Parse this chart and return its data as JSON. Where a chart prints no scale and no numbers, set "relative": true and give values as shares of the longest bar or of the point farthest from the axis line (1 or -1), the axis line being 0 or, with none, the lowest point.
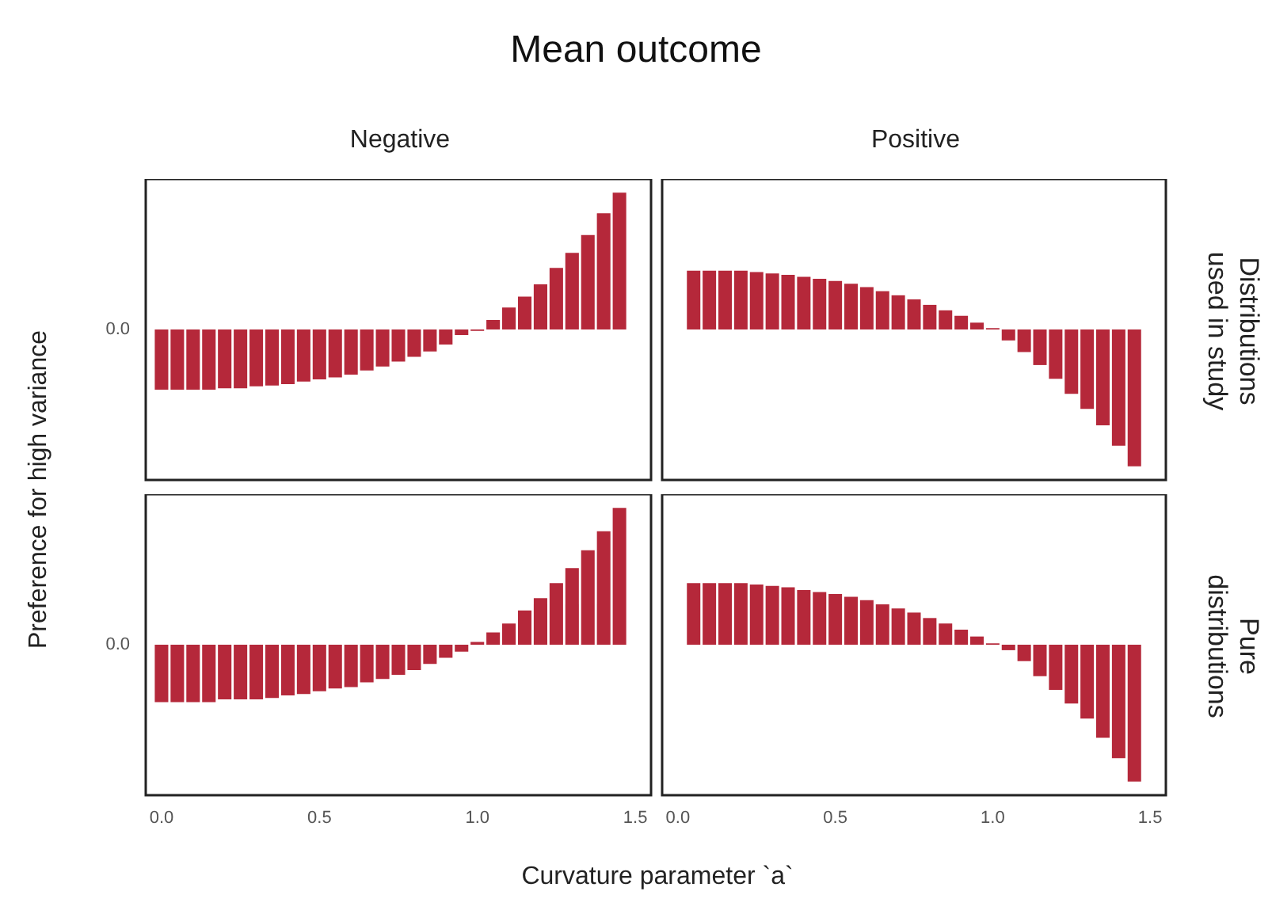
{
  "chart_data": [
    {
      "type": "bar",
      "title": "Mean outcome",
      "subtitle": "Negative",
      "ylabel": "Preference for high variance",
      "relative": true,
      "color": "#b5283a",
      "tick_labels": false,
      "xlim": [
        -0.05,
        1.55
      ],
      "annotations": [
        "0.0"
      ],
      "x": [
        0,
        0.05,
        0.1,
        0.15,
        0.2,
        0.25,
        0.3,
        0.35,
        0.4,
        0.45,
        0.5,
        0.55,
        0.6,
        0.65,
        0.7,
        0.75,
        0.8,
        0.85,
        0.9,
        0.95,
        1,
        1.05,
        1.1,
        1.15,
        1.2,
        1.25,
        1.3,
        1.35,
        1.4,
        1.45
      ],
      "values": [
        -0.44,
        -0.44,
        -0.44,
        -0.44,
        -0.43,
        -0.43,
        -0.415,
        -0.41,
        -0.4,
        -0.38,
        -0.365,
        -0.35,
        -0.33,
        -0.3,
        -0.27,
        -0.235,
        -0.2,
        -0.16,
        -0.11,
        -0.04,
        -0.01,
        0.07,
        0.16,
        0.24,
        0.33,
        0.45,
        0.56,
        0.69,
        0.85,
        1
      ]
    },
    {
      "type": "bar",
      "subtitle": "Positive",
      "y2label": "Distributions used in study",
      "relative": true,
      "color": "#b5283a",
      "tick_labels": false,
      "xlim": [
        -0.05,
        1.55
      ],
      "x": [
        0.05,
        0.1,
        0.15,
        0.2,
        0.25,
        0.3,
        0.35,
        0.4,
        0.45,
        0.5,
        0.55,
        0.6,
        0.65,
        0.7,
        0.75,
        0.8,
        0.85,
        0.9,
        0.95,
        1,
        1.05,
        1.1,
        1.15,
        1.2,
        1.25,
        1.3,
        1.35,
        1.4,
        1.45
      ],
      "values": [
        0.43,
        0.43,
        0.43,
        0.43,
        0.42,
        0.41,
        0.4,
        0.385,
        0.37,
        0.355,
        0.335,
        0.31,
        0.28,
        0.25,
        0.22,
        0.18,
        0.14,
        0.1,
        0.05,
        0.01,
        -0.08,
        -0.165,
        -0.26,
        -0.36,
        -0.47,
        -0.58,
        -0.7,
        -0.85,
        -1
      ]
    },
    {
      "type": "bar",
      "xlabel": "Curvature parameter `a`",
      "relative": true,
      "color": "#b5283a",
      "tick_labels": "x",
      "xlim": [
        -0.05,
        1.55
      ],
      "xticks": [
        {
          "value": 0,
          "label": "0.0"
        },
        {
          "value": 0.5,
          "label": "0.5"
        },
        {
          "value": 1,
          "label": "1.0"
        },
        {
          "value": 1.5,
          "label": "1.5"
        }
      ],
      "annotations": [
        "0.0"
      ],
      "x": [
        0,
        0.05,
        0.1,
        0.15,
        0.2,
        0.25,
        0.3,
        0.35,
        0.4,
        0.45,
        0.5,
        0.55,
        0.6,
        0.65,
        0.7,
        0.75,
        0.8,
        0.85,
        0.9,
        0.95,
        1,
        1.05,
        1.1,
        1.15,
        1.2,
        1.25,
        1.3,
        1.35,
        1.4,
        1.45
      ],
      "values": [
        -0.42,
        -0.42,
        -0.42,
        -0.42,
        -0.4,
        -0.4,
        -0.4,
        -0.39,
        -0.37,
        -0.36,
        -0.34,
        -0.32,
        -0.31,
        -0.275,
        -0.25,
        -0.22,
        -0.185,
        -0.14,
        -0.095,
        -0.05,
        0.02,
        0.09,
        0.155,
        0.25,
        0.34,
        0.45,
        0.56,
        0.69,
        0.83,
        1
      ]
    },
    {
      "type": "bar",
      "y2label": "Pure distributions",
      "relative": true,
      "color": "#b5283a",
      "tick_labels": "x",
      "xlim": [
        -0.05,
        1.55
      ],
      "xticks": [
        {
          "value": 0,
          "label": "0.0"
        },
        {
          "value": 0.5,
          "label": "0.5"
        },
        {
          "value": 1,
          "label": "1.0"
        },
        {
          "value": 1.5,
          "label": "1.5"
        }
      ],
      "x": [
        0.05,
        0.1,
        0.15,
        0.2,
        0.25,
        0.3,
        0.35,
        0.4,
        0.45,
        0.5,
        0.55,
        0.6,
        0.65,
        0.7,
        0.75,
        0.8,
        0.85,
        0.9,
        0.95,
        1,
        1.05,
        1.1,
        1.15,
        1.2,
        1.25,
        1.3,
        1.35,
        1.4,
        1.45
      ],
      "values": [
        0.45,
        0.45,
        0.45,
        0.45,
        0.44,
        0.43,
        0.42,
        0.4,
        0.385,
        0.37,
        0.35,
        0.325,
        0.295,
        0.265,
        0.235,
        0.195,
        0.155,
        0.11,
        0.06,
        0.01,
        -0.04,
        -0.12,
        -0.23,
        -0.33,
        -0.43,
        -0.54,
        -0.68,
        -0.83,
        -1
      ]
    }
  ]
}
